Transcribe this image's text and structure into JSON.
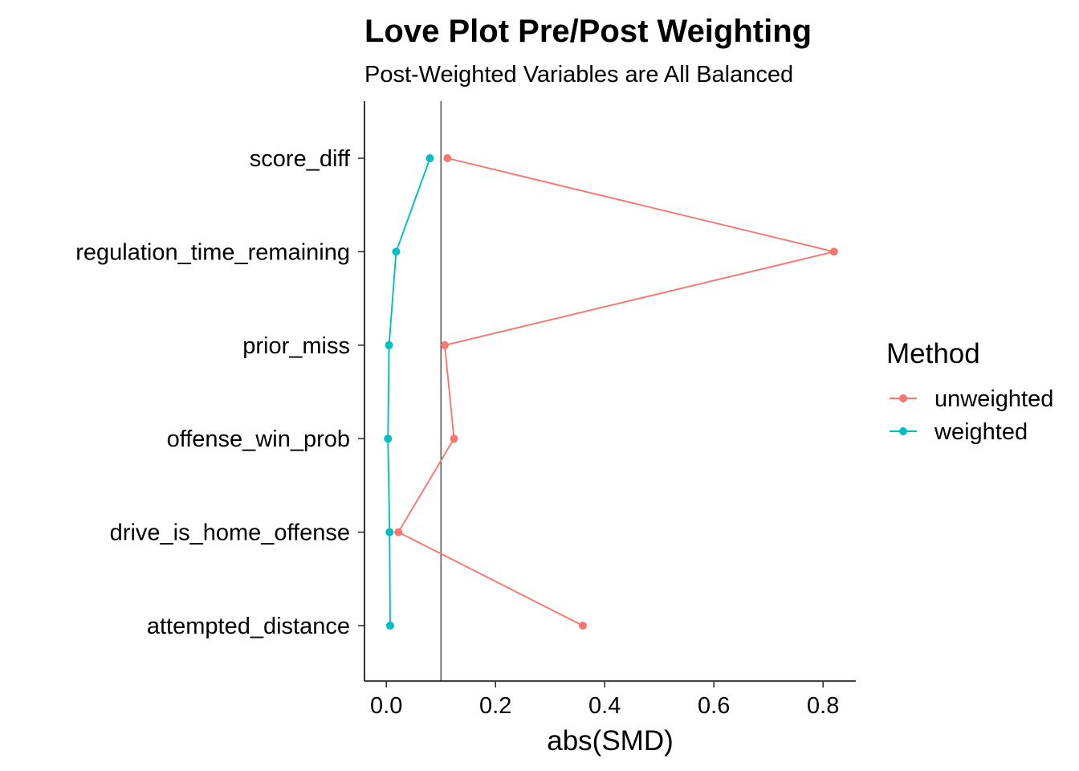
{
  "chart_data": {
    "type": "line",
    "title": "Love Plot Pre/Post Weighting",
    "subtitle": "Post-Weighted Variables are All Balanced",
    "xlabel": "abs(SMD)",
    "ylabel": "",
    "xlim": [
      -0.04,
      0.86
    ],
    "x_ticks": [
      0.0,
      0.2,
      0.4,
      0.6,
      0.8
    ],
    "x_tick_labels": [
      "0.0",
      "0.2",
      "0.4",
      "0.6",
      "0.8"
    ],
    "categories": [
      "score_diff",
      "regulation_time_remaining",
      "prior_miss",
      "offense_win_prob",
      "drive_is_home_offense",
      "attempted_distance"
    ],
    "reference_line": {
      "x": 0.1
    },
    "series": [
      {
        "name": "unweighted",
        "color": "#F8766D",
        "values": [
          0.112,
          0.82,
          0.107,
          0.124,
          0.022,
          0.36
        ]
      },
      {
        "name": "weighted",
        "color": "#00BFC4",
        "values": [
          0.08,
          0.018,
          0.005,
          0.003,
          0.006,
          0.007
        ]
      }
    ],
    "legend": {
      "title": "Method",
      "position": "right"
    },
    "grid": false
  }
}
